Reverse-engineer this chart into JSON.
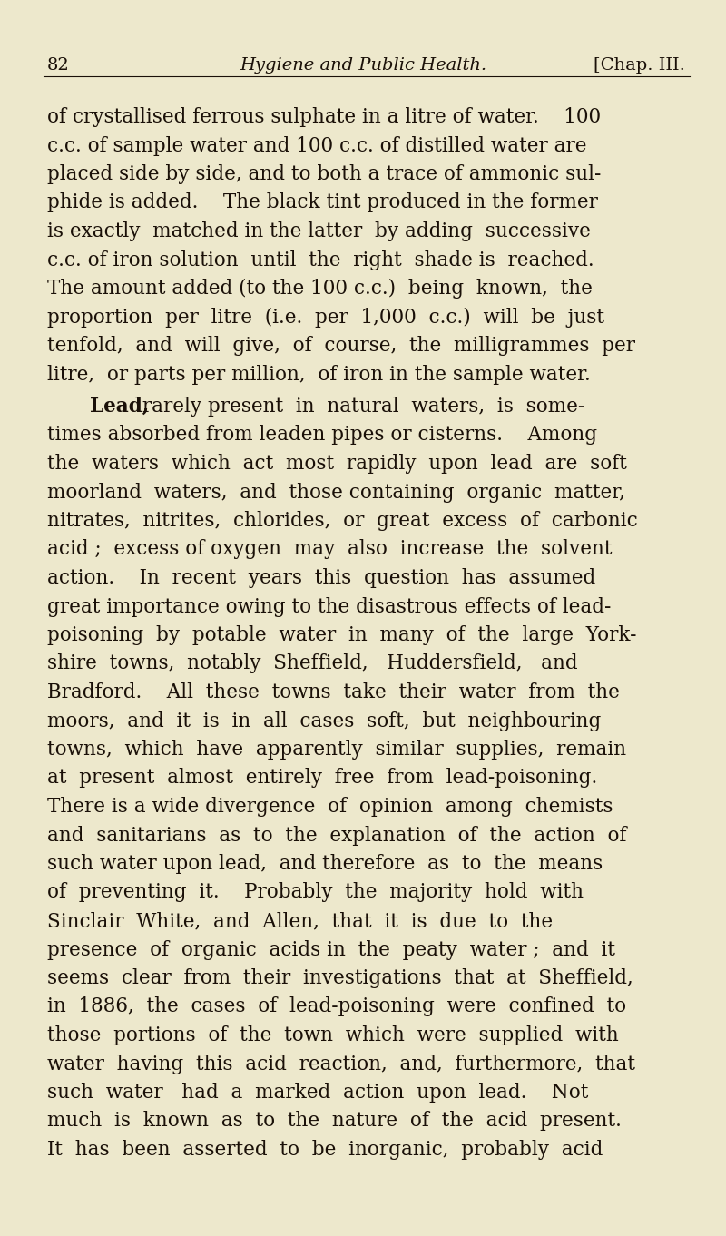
{
  "background_color": "#ede8cc",
  "page_number": "82",
  "header_title": "Hygiene and Public Health.",
  "header_right": "[Chap. III.",
  "text_color": "#1a1008",
  "header_font_size": 14,
  "body_font_size": 15.5,
  "para1_lines": [
    "of crystallised ferrous sulphate in a litre of water.    100",
    "c.c. of sample water and 100 c.c. of distilled water are",
    "placed side by side, and to both a trace of ammonic sul-",
    "phide is added.    The black tint produced in the former",
    "is exactly  matched in the latter  by adding  successive",
    "c.c. of iron solution  until  the  right  shade is  reached.",
    "The amount added (to the 100 c.c.)  being  known,  the",
    "proportion  per  litre  (i.e.  per  1,000  c.c.)  will  be  just",
    "tenfold,  and  will  give,  of  course,  the  milligrammes  per",
    "litre,  or parts per million,  of iron in the sample water."
  ],
  "para2_bold": "Lead,",
  "para2_first_rest": " rarely present  in  natural  waters,  is  some-",
  "para2_lines": [
    "times absorbed from leaden pipes or cisterns.    Among",
    "the  waters  which  act  most  rapidly  upon  lead  are  soft",
    "moorland  waters,  and  those containing  organic  matter,",
    "nitrates,  nitrites,  chlorides,  or  great  excess  of  carbonic",
    "acid ;  excess of oxygen  may  also  increase  the  solvent",
    "action.    In  recent  years  this  question  has  assumed",
    "great importance owing to the disastrous effects of lead-",
    "poisoning  by  potable  water  in  many  of  the  large  York-",
    "shire  towns,  notably  Sheffield,   Huddersfield,   and",
    "Bradford.    All  these  towns  take  their  water  from  the",
    "moors,  and  it  is  in  all  cases  soft,  but  neighbouring",
    "towns,  which  have  apparently  similar  supplies,  remain",
    "at  present  almost  entirely  free  from  lead-poisoning.",
    "There is a wide divergence  of  opinion  among  chemists",
    "and  sanitarians  as  to  the  explanation  of  the  action  of",
    "such water upon lead,  and therefore  as  to  the  means",
    "of  preventing  it.    Probably  the  majority  hold  with",
    "Sinclair  White,  and  Allen,  that  it  is  due  to  the",
    "presence  of  organic  acids in  the  peaty  water ;  and  it",
    "seems  clear  from  their  investigations  that  at  Sheffield,",
    "in  1886,  the  cases  of  lead-poisoning  were  confined  to",
    "those  portions  of  the  town  which  were  supplied  with",
    "water  having  this  acid  reaction,  and,  furthermore,  that",
    "such  water   had  a  marked  action  upon  lead.    Not",
    "much  is  known  as  to  the  nature  of  the  acid  present.",
    "It  has  been  asserted  to  be  inorganic,  probably  acid"
  ]
}
